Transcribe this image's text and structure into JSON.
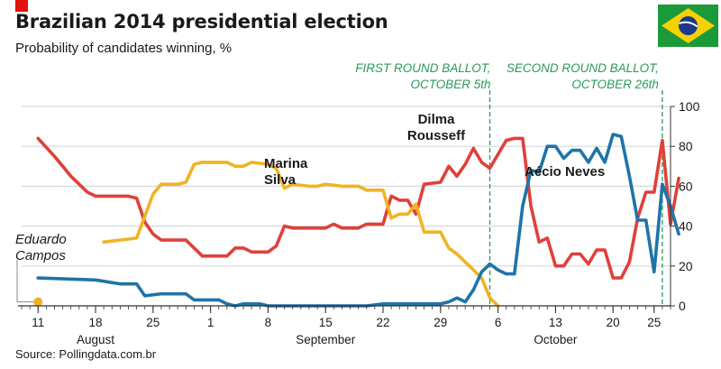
{
  "header": {
    "title": "Brazilian 2014 presidential election",
    "subtitle": "Probability of candidates winning, %"
  },
  "source": "Source: Pollingdata.com.br",
  "flag_icon": "brazil-flag-icon",
  "colors": {
    "dilma": "#e0403a",
    "marina": "#f0b323",
    "aecio": "#1f74a8",
    "eduardo": "#f0b323",
    "ballot": "#2a9a5a",
    "grid": "#d4d9dc",
    "axis": "#333333"
  },
  "chart_data": {
    "type": "line",
    "title": "Brazilian 2014 presidential election",
    "subtitle": "Probability of candidates winning, %",
    "xlabel": "",
    "ylabel": "",
    "ylim": [
      0,
      100
    ],
    "yticks": [
      0,
      20,
      40,
      60,
      80,
      100
    ],
    "y_axis_position": "right",
    "grid": true,
    "xlim": [
      "2014-08-09",
      "2014-10-27"
    ],
    "xticks": [
      {
        "date": "2014-08-11",
        "label": "11"
      },
      {
        "date": "2014-08-18",
        "label": "18"
      },
      {
        "date": "2014-08-25",
        "label": "25"
      },
      {
        "date": "2014-09-01",
        "label": "1"
      },
      {
        "date": "2014-09-08",
        "label": "8"
      },
      {
        "date": "2014-09-15",
        "label": "15"
      },
      {
        "date": "2014-09-22",
        "label": "22"
      },
      {
        "date": "2014-09-29",
        "label": "29"
      },
      {
        "date": "2014-10-06",
        "label": "6"
      },
      {
        "date": "2014-10-13",
        "label": "13"
      },
      {
        "date": "2014-10-20",
        "label": "20"
      },
      {
        "date": "2014-10-25",
        "label": "25"
      }
    ],
    "months": [
      {
        "date": "2014-08-18",
        "label": "August"
      },
      {
        "date": "2014-09-15",
        "label": "September"
      },
      {
        "date": "2014-10-13",
        "label": "October"
      }
    ],
    "events": [
      {
        "date": "2014-10-05",
        "line1": "FIRST ROUND BALLOT,",
        "line2": "OCTOBER 5th"
      },
      {
        "date": "2014-10-26",
        "line1": "SECOND ROUND BALLOT,",
        "line2": "OCTOBER 26th"
      }
    ],
    "series": [
      {
        "key": "dilma",
        "label_lines": [
          "Dilma",
          "Rousseff"
        ],
        "points": [
          [
            "2014-08-11",
            84
          ],
          [
            "2014-08-13",
            75
          ],
          [
            "2014-08-15",
            65
          ],
          [
            "2014-08-17",
            57
          ],
          [
            "2014-08-18",
            55
          ],
          [
            "2014-08-22",
            55
          ],
          [
            "2014-08-23",
            54
          ],
          [
            "2014-08-24",
            42
          ],
          [
            "2014-08-25",
            36
          ],
          [
            "2014-08-26",
            33
          ],
          [
            "2014-08-29",
            33
          ],
          [
            "2014-08-30",
            29
          ],
          [
            "2014-08-31",
            25
          ],
          [
            "2014-09-03",
            25
          ],
          [
            "2014-09-04",
            29
          ],
          [
            "2014-09-05",
            29
          ],
          [
            "2014-09-06",
            27
          ],
          [
            "2014-09-08",
            27
          ],
          [
            "2014-09-09",
            30
          ],
          [
            "2014-09-10",
            40
          ],
          [
            "2014-09-11",
            39
          ],
          [
            "2014-09-14",
            39
          ],
          [
            "2014-09-15",
            39
          ],
          [
            "2014-09-16",
            41
          ],
          [
            "2014-09-17",
            39
          ],
          [
            "2014-09-19",
            39
          ],
          [
            "2014-09-20",
            41
          ],
          [
            "2014-09-22",
            41
          ],
          [
            "2014-09-23",
            55
          ],
          [
            "2014-09-24",
            53
          ],
          [
            "2014-09-25",
            53
          ],
          [
            "2014-09-26",
            46
          ],
          [
            "2014-09-27",
            61
          ],
          [
            "2014-09-29",
            62
          ],
          [
            "2014-09-30",
            70
          ],
          [
            "2014-10-01",
            65
          ],
          [
            "2014-10-02",
            71
          ],
          [
            "2014-10-03",
            79
          ],
          [
            "2014-10-04",
            72
          ],
          [
            "2014-10-05",
            69
          ],
          [
            "2014-10-06",
            76
          ],
          [
            "2014-10-07",
            83
          ],
          [
            "2014-10-08",
            84
          ],
          [
            "2014-10-09",
            84
          ],
          [
            "2014-10-10",
            50
          ],
          [
            "2014-10-11",
            32
          ],
          [
            "2014-10-12",
            34
          ],
          [
            "2014-10-13",
            20
          ],
          [
            "2014-10-14",
            20
          ],
          [
            "2014-10-15",
            26
          ],
          [
            "2014-10-16",
            26
          ],
          [
            "2014-10-17",
            21
          ],
          [
            "2014-10-18",
            28
          ],
          [
            "2014-10-19",
            28
          ],
          [
            "2014-10-20",
            14
          ],
          [
            "2014-10-21",
            14
          ],
          [
            "2014-10-22",
            22
          ],
          [
            "2014-10-23",
            44
          ],
          [
            "2014-10-24",
            57
          ],
          [
            "2014-10-25",
            57
          ],
          [
            "2014-10-26",
            83
          ],
          [
            "2014-10-27",
            41
          ],
          [
            "2014-10-28",
            64
          ]
        ]
      },
      {
        "key": "marina",
        "label_lines": [
          "Marina",
          "Silva"
        ],
        "points": [
          [
            "2014-08-19",
            32
          ],
          [
            "2014-08-21",
            33
          ],
          [
            "2014-08-23",
            34
          ],
          [
            "2014-08-24",
            45
          ],
          [
            "2014-08-25",
            56
          ],
          [
            "2014-08-26",
            61
          ],
          [
            "2014-08-28",
            61
          ],
          [
            "2014-08-29",
            62
          ],
          [
            "2014-08-30",
            71
          ],
          [
            "2014-08-31",
            72
          ],
          [
            "2014-09-02",
            72
          ],
          [
            "2014-09-03",
            72
          ],
          [
            "2014-09-04",
            70
          ],
          [
            "2014-09-05",
            70
          ],
          [
            "2014-09-06",
            72
          ],
          [
            "2014-09-08",
            71
          ],
          [
            "2014-09-09",
            69
          ],
          [
            "2014-09-10",
            59
          ],
          [
            "2014-09-11",
            61
          ],
          [
            "2014-09-13",
            60
          ],
          [
            "2014-09-14",
            60
          ],
          [
            "2014-09-15",
            61
          ],
          [
            "2014-09-17",
            60
          ],
          [
            "2014-09-19",
            60
          ],
          [
            "2014-09-20",
            58
          ],
          [
            "2014-09-22",
            58
          ],
          [
            "2014-09-23",
            44
          ],
          [
            "2014-09-24",
            46
          ],
          [
            "2014-09-25",
            46
          ],
          [
            "2014-09-26",
            51
          ],
          [
            "2014-09-27",
            37
          ],
          [
            "2014-09-29",
            37
          ],
          [
            "2014-09-30",
            29
          ],
          [
            "2014-10-01",
            26
          ],
          [
            "2014-10-02",
            22
          ],
          [
            "2014-10-03",
            18
          ],
          [
            "2014-10-04",
            14
          ],
          [
            "2014-10-05",
            4
          ],
          [
            "2014-10-06",
            0
          ]
        ]
      },
      {
        "key": "aecio",
        "label_lines": [
          "Aécio Neves"
        ],
        "points": [
          [
            "2014-08-11",
            14
          ],
          [
            "2014-08-18",
            13
          ],
          [
            "2014-08-21",
            11
          ],
          [
            "2014-08-23",
            11
          ],
          [
            "2014-08-24",
            5
          ],
          [
            "2014-08-26",
            6
          ],
          [
            "2014-08-29",
            6
          ],
          [
            "2014-08-30",
            3
          ],
          [
            "2014-09-02",
            3
          ],
          [
            "2014-09-03",
            1
          ],
          [
            "2014-09-04",
            0
          ],
          [
            "2014-09-05",
            1
          ],
          [
            "2014-09-07",
            1
          ],
          [
            "2014-09-08",
            0
          ],
          [
            "2014-09-20",
            0
          ],
          [
            "2014-09-22",
            1
          ],
          [
            "2014-09-29",
            1
          ],
          [
            "2014-09-30",
            2
          ],
          [
            "2014-10-01",
            4
          ],
          [
            "2014-10-02",
            2
          ],
          [
            "2014-10-03",
            8
          ],
          [
            "2014-10-04",
            17
          ],
          [
            "2014-10-05",
            21
          ],
          [
            "2014-10-06",
            18
          ],
          [
            "2014-10-07",
            16
          ],
          [
            "2014-10-08",
            16
          ],
          [
            "2014-10-09",
            50
          ],
          [
            "2014-10-10",
            68
          ],
          [
            "2014-10-11",
            67
          ],
          [
            "2014-10-12",
            80
          ],
          [
            "2014-10-13",
            80
          ],
          [
            "2014-10-14",
            74
          ],
          [
            "2014-10-15",
            78
          ],
          [
            "2014-10-16",
            78
          ],
          [
            "2014-10-17",
            72
          ],
          [
            "2014-10-18",
            79
          ],
          [
            "2014-10-19",
            72
          ],
          [
            "2014-10-20",
            86
          ],
          [
            "2014-10-21",
            85
          ],
          [
            "2014-10-22",
            65
          ],
          [
            "2014-10-23",
            43
          ],
          [
            "2014-10-24",
            43
          ],
          [
            "2014-10-25",
            17
          ],
          [
            "2014-10-26",
            61
          ],
          [
            "2014-10-27",
            50
          ],
          [
            "2014-10-28",
            36
          ]
        ]
      },
      {
        "key": "eduardo",
        "label_lines": [
          "Eduardo",
          "Campos"
        ],
        "points": [
          [
            "2014-08-11",
            2
          ]
        ]
      }
    ]
  }
}
